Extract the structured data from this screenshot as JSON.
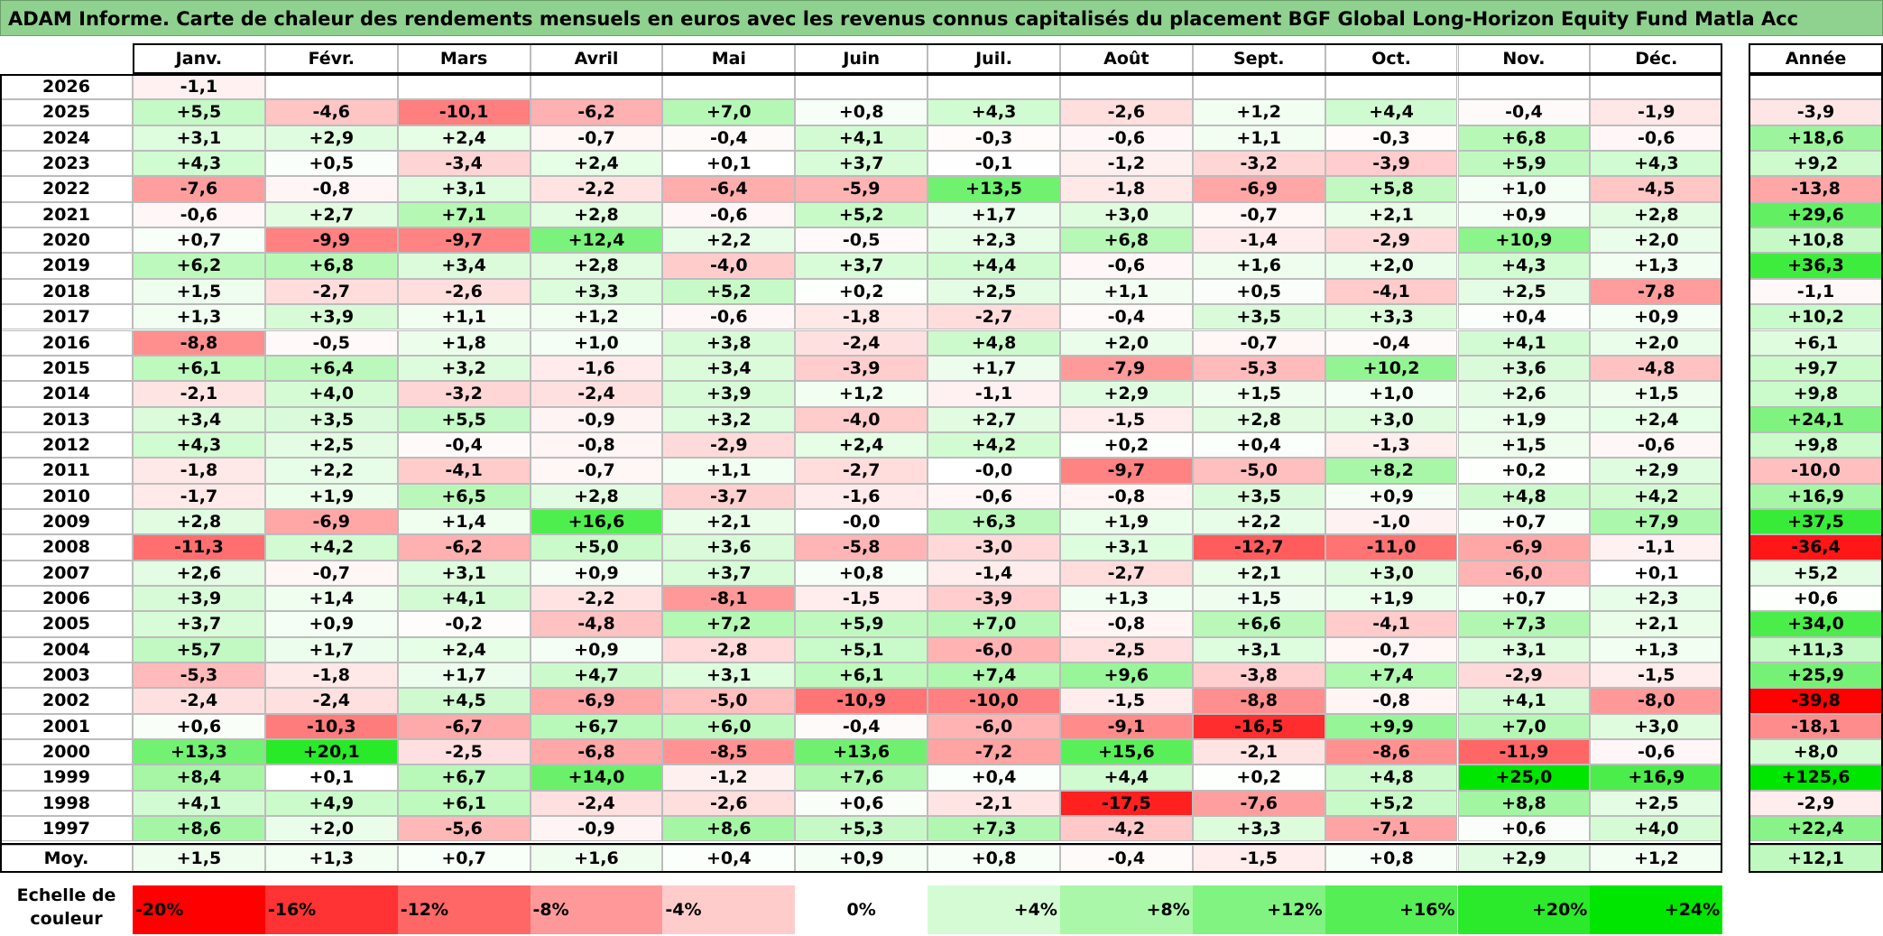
{
  "title": "ADAM Informe. Carte de chaleur des rendements mensuels en euros avec les revenus connus capitalisés du placement BGF Global Long-Horizon Equity Fund Matla Acc",
  "chart_data": {
    "type": "heatmap",
    "title": "ADAM Informe. Carte de chaleur des rendements mensuels en euros avec les revenus connus capitalisés du placement BGF Global Long-Horizon Equity Fund Matla Acc",
    "columns": [
      "Janv.",
      "Févr.",
      "Mars",
      "Avril",
      "Mai",
      "Juin",
      "Juil.",
      "Août",
      "Sept.",
      "Oct.",
      "Nov.",
      "Déc."
    ],
    "year_column": "Année",
    "rows": [
      {
        "year": "2026",
        "months": [
          "-1,1",
          "",
          "",
          "",
          "",
          "",
          "",
          "",
          "",
          "",
          "",
          ""
        ],
        "annual": ""
      },
      {
        "year": "2025",
        "months": [
          "+5,5",
          "-4,6",
          "-10,1",
          "-6,2",
          "+7,0",
          "+0,8",
          "+4,3",
          "-2,6",
          "+1,2",
          "+4,4",
          "-0,4",
          "-1,9"
        ],
        "annual": "-3,9"
      },
      {
        "year": "2024",
        "months": [
          "+3,1",
          "+2,9",
          "+2,4",
          "-0,7",
          "-0,4",
          "+4,1",
          "-0,3",
          "-0,6",
          "+1,1",
          "-0,3",
          "+6,8",
          "-0,6"
        ],
        "annual": "+18,6"
      },
      {
        "year": "2023",
        "months": [
          "+4,3",
          "+0,5",
          "-3,4",
          "+2,4",
          "+0,1",
          "+3,7",
          "-0,1",
          "-1,2",
          "-3,2",
          "-3,9",
          "+5,9",
          "+4,3"
        ],
        "annual": "+9,2"
      },
      {
        "year": "2022",
        "months": [
          "-7,6",
          "-0,8",
          "+3,1",
          "-2,2",
          "-6,4",
          "-5,9",
          "+13,5",
          "-1,8",
          "-6,9",
          "+5,8",
          "+1,0",
          "-4,5"
        ],
        "annual": "-13,8"
      },
      {
        "year": "2021",
        "months": [
          "-0,6",
          "+2,7",
          "+7,1",
          "+2,8",
          "-0,6",
          "+5,2",
          "+1,7",
          "+3,0",
          "-0,7",
          "+2,1",
          "+0,9",
          "+2,8"
        ],
        "annual": "+29,6"
      },
      {
        "year": "2020",
        "months": [
          "+0,7",
          "-9,9",
          "-9,7",
          "+12,4",
          "+2,2",
          "-0,5",
          "+2,3",
          "+6,8",
          "-1,4",
          "-2,9",
          "+10,9",
          "+2,0"
        ],
        "annual": "+10,8"
      },
      {
        "year": "2019",
        "months": [
          "+6,2",
          "+6,8",
          "+3,4",
          "+2,8",
          "-4,0",
          "+3,7",
          "+4,4",
          "-0,6",
          "+1,6",
          "+2,0",
          "+4,3",
          "+1,3"
        ],
        "annual": "+36,3"
      },
      {
        "year": "2018",
        "months": [
          "+1,5",
          "-2,7",
          "-2,6",
          "+3,3",
          "+5,2",
          "+0,2",
          "+2,5",
          "+1,1",
          "+0,5",
          "-4,1",
          "+2,5",
          "-7,8"
        ],
        "annual": "-1,1"
      },
      {
        "year": "2017",
        "months": [
          "+1,3",
          "+3,9",
          "+1,1",
          "+1,2",
          "-0,6",
          "-1,8",
          "-2,7",
          "-0,4",
          "+3,5",
          "+3,3",
          "+0,4",
          "+0,9"
        ],
        "annual": "+10,2"
      },
      {
        "year": "2016",
        "months": [
          "-8,8",
          "-0,5",
          "+1,8",
          "+1,0",
          "+3,8",
          "-2,4",
          "+4,8",
          "+2,0",
          "-0,7",
          "-0,4",
          "+4,1",
          "+2,0"
        ],
        "annual": "+6,1"
      },
      {
        "year": "2015",
        "months": [
          "+6,1",
          "+6,4",
          "+3,2",
          "-1,6",
          "+3,4",
          "-3,9",
          "+1,7",
          "-7,9",
          "-5,3",
          "+10,2",
          "+3,6",
          "-4,8"
        ],
        "annual": "+9,7"
      },
      {
        "year": "2014",
        "months": [
          "-2,1",
          "+4,0",
          "-3,2",
          "-2,4",
          "+3,9",
          "+1,2",
          "-1,1",
          "+2,9",
          "+1,5",
          "+1,0",
          "+2,6",
          "+1,5"
        ],
        "annual": "+9,8"
      },
      {
        "year": "2013",
        "months": [
          "+3,4",
          "+3,5",
          "+5,5",
          "-0,9",
          "+3,2",
          "-4,0",
          "+2,7",
          "-1,5",
          "+2,8",
          "+3,0",
          "+1,9",
          "+2,4"
        ],
        "annual": "+24,1"
      },
      {
        "year": "2012",
        "months": [
          "+4,3",
          "+2,5",
          "-0,4",
          "-0,8",
          "-2,9",
          "+2,4",
          "+4,2",
          "+0,2",
          "+0,4",
          "-1,3",
          "+1,5",
          "-0,6"
        ],
        "annual": "+9,8"
      },
      {
        "year": "2011",
        "months": [
          "-1,8",
          "+2,2",
          "-4,1",
          "-0,7",
          "+1,1",
          "-2,7",
          "-0,0",
          "-9,7",
          "-5,0",
          "+8,2",
          "+0,2",
          "+2,9"
        ],
        "annual": "-10,0"
      },
      {
        "year": "2010",
        "months": [
          "-1,7",
          "+1,9",
          "+6,5",
          "+2,8",
          "-3,7",
          "-1,6",
          "-0,6",
          "-0,8",
          "+3,5",
          "+0,9",
          "+4,8",
          "+4,2"
        ],
        "annual": "+16,9"
      },
      {
        "year": "2009",
        "months": [
          "+2,8",
          "-6,9",
          "+1,4",
          "+16,6",
          "+2,1",
          "-0,0",
          "+6,3",
          "+1,9",
          "+2,2",
          "-1,0",
          "+0,7",
          "+7,9"
        ],
        "annual": "+37,5"
      },
      {
        "year": "2008",
        "months": [
          "-11,3",
          "+4,2",
          "-6,2",
          "+5,0",
          "+3,6",
          "-5,8",
          "-3,0",
          "+3,1",
          "-12,7",
          "-11,0",
          "-6,9",
          "-1,1"
        ],
        "annual": "-36,4"
      },
      {
        "year": "2007",
        "months": [
          "+2,6",
          "-0,7",
          "+3,1",
          "+0,9",
          "+3,7",
          "+0,8",
          "-1,4",
          "-2,7",
          "+2,1",
          "+3,0",
          "-6,0",
          "+0,1"
        ],
        "annual": "+5,2"
      },
      {
        "year": "2006",
        "months": [
          "+3,9",
          "+1,4",
          "+4,1",
          "-2,2",
          "-8,1",
          "-1,5",
          "-3,9",
          "+1,3",
          "+1,5",
          "+1,9",
          "+0,7",
          "+2,3"
        ],
        "annual": "+0,6"
      },
      {
        "year": "2005",
        "months": [
          "+3,7",
          "+0,9",
          "-0,2",
          "-4,8",
          "+7,2",
          "+5,9",
          "+7,0",
          "-0,8",
          "+6,6",
          "-4,1",
          "+7,3",
          "+2,1"
        ],
        "annual": "+34,0"
      },
      {
        "year": "2004",
        "months": [
          "+5,7",
          "+1,7",
          "+2,4",
          "+0,9",
          "-2,8",
          "+5,1",
          "-6,0",
          "-2,5",
          "+3,1",
          "-0,7",
          "+3,1",
          "+1,3"
        ],
        "annual": "+11,3"
      },
      {
        "year": "2003",
        "months": [
          "-5,3",
          "-1,8",
          "+1,7",
          "+4,7",
          "+3,1",
          "+6,1",
          "+7,4",
          "+9,6",
          "-3,8",
          "+7,4",
          "-2,9",
          "-1,5"
        ],
        "annual": "+25,9"
      },
      {
        "year": "2002",
        "months": [
          "-2,4",
          "-2,4",
          "+4,5",
          "-6,9",
          "-5,0",
          "-10,9",
          "-10,0",
          "-1,5",
          "-8,8",
          "-0,8",
          "+4,1",
          "-8,0"
        ],
        "annual": "-39,8"
      },
      {
        "year": "2001",
        "months": [
          "+0,6",
          "-10,3",
          "-6,7",
          "+6,7",
          "+6,0",
          "-0,4",
          "-6,0",
          "-9,1",
          "-16,5",
          "+9,9",
          "+7,0",
          "+3,0"
        ],
        "annual": "-18,1"
      },
      {
        "year": "2000",
        "months": [
          "+13,3",
          "+20,1",
          "-2,5",
          "-6,8",
          "-8,5",
          "+13,6",
          "-7,2",
          "+15,6",
          "-2,1",
          "-8,6",
          "-11,9",
          "-0,6"
        ],
        "annual": "+8,0"
      },
      {
        "year": "1999",
        "months": [
          "+8,4",
          "+0,1",
          "+6,7",
          "+14,0",
          "-1,2",
          "+7,6",
          "+0,4",
          "+4,4",
          "+0,2",
          "+4,8",
          "+25,0",
          "+16,9"
        ],
        "annual": "+125,6"
      },
      {
        "year": "1998",
        "months": [
          "+4,1",
          "+4,9",
          "+6,1",
          "-2,4",
          "-2,6",
          "+0,6",
          "-2,1",
          "-17,5",
          "-7,6",
          "+5,2",
          "+8,8",
          "+2,5"
        ],
        "annual": "-2,9"
      },
      {
        "year": "1997",
        "months": [
          "+8,6",
          "+2,0",
          "-5,6",
          "-0,9",
          "+8,6",
          "+5,3",
          "+7,3",
          "-4,2",
          "+3,3",
          "-7,1",
          "+0,6",
          "+4,0"
        ],
        "annual": "+22,4"
      }
    ],
    "average": {
      "label": "Moy.",
      "months": [
        "+1,5",
        "+1,3",
        "+0,7",
        "+1,6",
        "+0,4",
        "+0,9",
        "+0,8",
        "-0,4",
        "-1,5",
        "+0,8",
        "+2,9",
        "+1,2"
      ],
      "annual": "+12,1"
    },
    "scale": {
      "label": "Echelle de couleur",
      "ticks": [
        "-20%",
        "-16%",
        "-12%",
        "-8%",
        "-4%",
        "0%",
        "+4%",
        "+8%",
        "+12%",
        "+16%",
        "+20%",
        "+24%"
      ],
      "values": [
        -20,
        -16,
        -12,
        -8,
        -4,
        0,
        4,
        8,
        12,
        16,
        20,
        24
      ]
    },
    "colors": {
      "negative_max": "#ff0000",
      "neutral": "#ffffff",
      "positive_max": "#00ee00",
      "title_bg": "#8fd18f"
    }
  }
}
